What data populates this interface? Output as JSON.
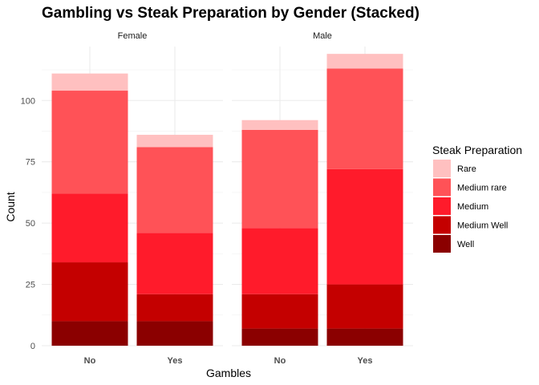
{
  "chart_data": {
    "type": "bar",
    "stacked": true,
    "title": "Gambling vs Steak Preparation by Gender (Stacked)",
    "xlabel": "Gambles",
    "ylabel": "Count",
    "ylim": [
      0,
      122
    ],
    "yticks": [
      0,
      25,
      50,
      75,
      100
    ],
    "categories": [
      "No",
      "Yes"
    ],
    "legend": {
      "title": "Steak Preparation",
      "position": "right",
      "entries": [
        "Rare",
        "Medium rare",
        "Medium",
        "Medium Well",
        "Well"
      ]
    },
    "colors": {
      "Rare": "#FFC0C0",
      "Medium rare": "#FF5257",
      "Medium": "#FF1B2B",
      "Medium Well": "#C40000",
      "Well": "#8B0000"
    },
    "grid": true,
    "panels": [
      {
        "name": "Female",
        "series": [
          {
            "name": "Well",
            "values": [
              10,
              10
            ]
          },
          {
            "name": "Medium Well",
            "values": [
              24,
              11
            ]
          },
          {
            "name": "Medium",
            "values": [
              28,
              25
            ]
          },
          {
            "name": "Medium rare",
            "values": [
              42,
              35
            ]
          },
          {
            "name": "Rare",
            "values": [
              7,
              5
            ]
          }
        ]
      },
      {
        "name": "Male",
        "series": [
          {
            "name": "Well",
            "values": [
              7,
              7
            ]
          },
          {
            "name": "Medium Well",
            "values": [
              14,
              18
            ]
          },
          {
            "name": "Medium",
            "values": [
              27,
              47
            ]
          },
          {
            "name": "Medium rare",
            "values": [
              40,
              41
            ]
          },
          {
            "name": "Rare",
            "values": [
              4,
              6
            ]
          }
        ]
      }
    ]
  }
}
